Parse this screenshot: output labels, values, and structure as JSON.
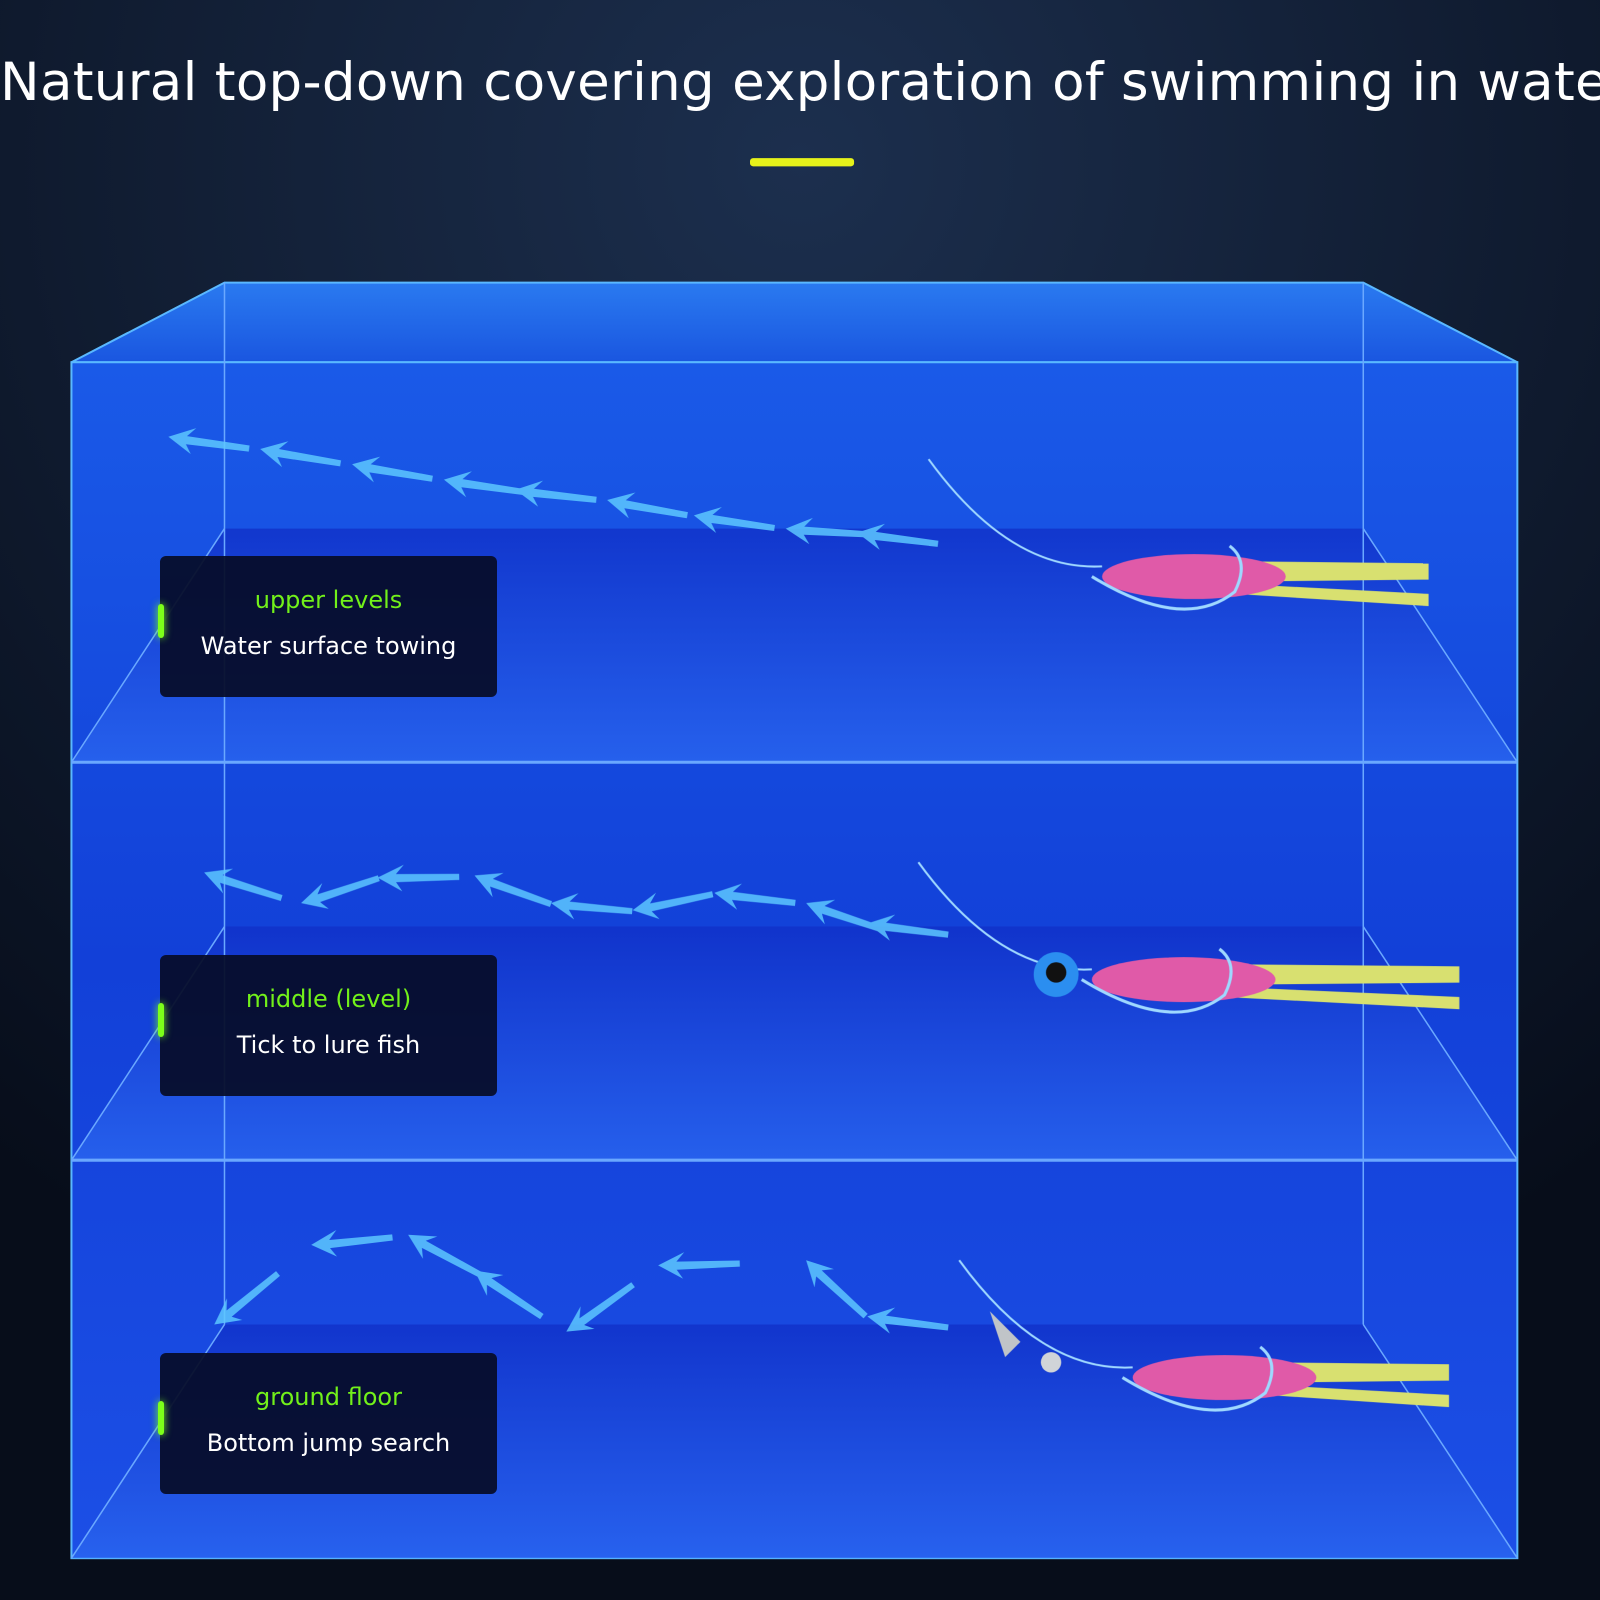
{
  "title": "Natural top-down covering exploration of swimming in water",
  "colors": {
    "accent_bar": "#e6f21a",
    "water": "#1446e0",
    "label_green": "#72f01a",
    "lure_body": "#e05aa8",
    "lure_tail": "#d8e070"
  },
  "layers": [
    {
      "level": "upper levels",
      "description": "Water surface towing",
      "rig": "hook"
    },
    {
      "level": "middle (level)",
      "description": "Tick to lure fish",
      "rig": "jig-head"
    },
    {
      "level": "ground floor",
      "description": "Bottom jump search",
      "rig": "bullet-weight"
    }
  ]
}
